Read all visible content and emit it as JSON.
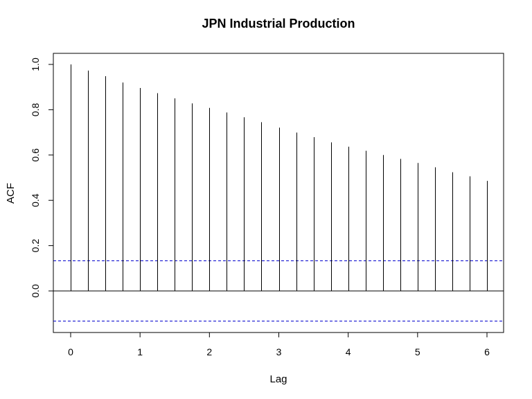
{
  "chart_data": {
    "type": "bar",
    "title": "JPN Industrial Production",
    "xlabel": "Lag",
    "ylabel": "ACF",
    "xlim": [
      0,
      6
    ],
    "ylim": [
      -0.18,
      1.0
    ],
    "x_ticks": [
      0,
      1,
      2,
      3,
      4,
      5,
      6
    ],
    "x_tick_labels": [
      "0",
      "1",
      "2",
      "3",
      "4",
      "5",
      "6"
    ],
    "y_ticks": [
      0.0,
      0.2,
      0.4,
      0.6,
      0.8,
      1.0
    ],
    "y_tick_labels": [
      "0.0",
      "0.2",
      "0.4",
      "0.6",
      "0.8",
      "1.0"
    ],
    "lags": [
      0,
      0.25,
      0.5,
      0.75,
      1.0,
      1.25,
      1.5,
      1.75,
      2.0,
      2.25,
      2.5,
      2.75,
      3.0,
      3.25,
      3.5,
      3.75,
      4.0,
      4.25,
      4.5,
      4.75,
      5.0,
      5.25,
      5.5,
      5.75,
      6.0
    ],
    "values": [
      1.0,
      0.973,
      0.948,
      0.92,
      0.896,
      0.873,
      0.85,
      0.828,
      0.808,
      0.788,
      0.767,
      0.745,
      0.721,
      0.699,
      0.679,
      0.656,
      0.637,
      0.619,
      0.6,
      0.583,
      0.565,
      0.546,
      0.524,
      0.506,
      0.486
    ],
    "confidence_band": 0.133,
    "band_color": "#0000cc",
    "bar_color": "#000000",
    "grid": false
  }
}
